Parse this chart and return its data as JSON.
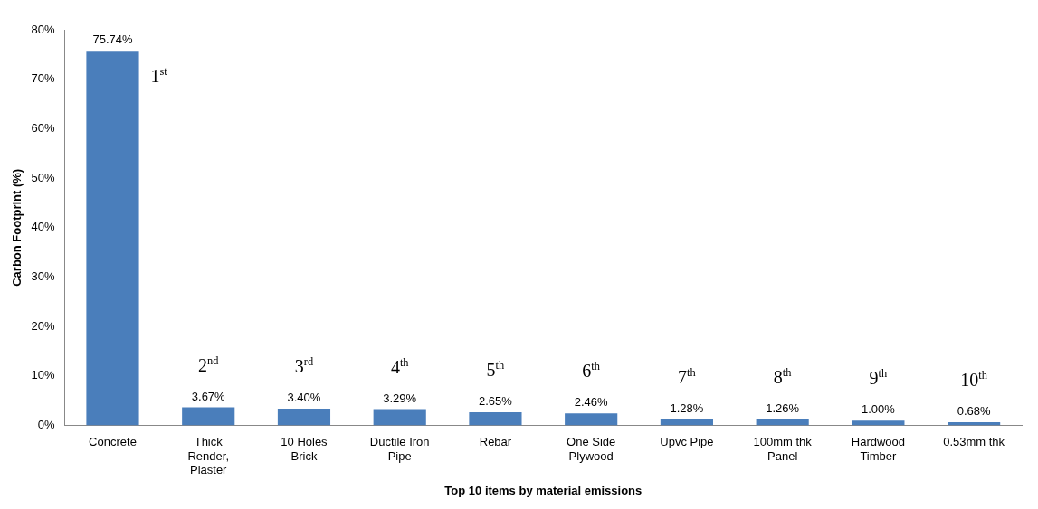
{
  "chart_data": {
    "type": "bar",
    "xlabel": "Top 10 items by material emissions",
    "ylabel": "Carbon Footprint (%)",
    "categories": [
      "Concrete",
      "Thick Render, Plaster",
      "10 Holes Brick",
      "Ductile Iron Pipe",
      "Rebar",
      "One Side Plywood",
      "Upvc Pipe",
      "100mm thk Panel",
      "Hardwood Timber",
      "0.53mm thk"
    ],
    "values": [
      75.74,
      3.67,
      3.4,
      3.29,
      2.65,
      2.46,
      1.28,
      1.26,
      1.0,
      0.68
    ],
    "value_labels": [
      "75.74%",
      "3.67%",
      "3.40%",
      "3.29%",
      "2.65%",
      "2.46%",
      "1.28%",
      "1.26%",
      "1.00%",
      "0.68%"
    ],
    "color": "#4a7ebb",
    "ylim": [
      0,
      80
    ],
    "yticks": [
      {
        "value": 0,
        "label": "0%"
      },
      {
        "value": 10,
        "label": "10%"
      },
      {
        "value": 20,
        "label": "20%"
      },
      {
        "value": 30,
        "label": "30%"
      },
      {
        "value": 40,
        "label": "40%"
      },
      {
        "value": 50,
        "label": "50%"
      },
      {
        "value": 60,
        "label": "60%"
      },
      {
        "value": 70,
        "label": "70%"
      },
      {
        "value": 80,
        "label": "80%"
      }
    ],
    "annotations": [
      "1$^{st}$",
      "2$^{nd}$",
      "3$^{rd}$",
      "4$^{th}$",
      "5$^{th}$",
      "6$^{th}$",
      "7$^{th}$",
      "8$^{th}$",
      "9$^{th}$",
      "10$^{th}$"
    ]
  }
}
